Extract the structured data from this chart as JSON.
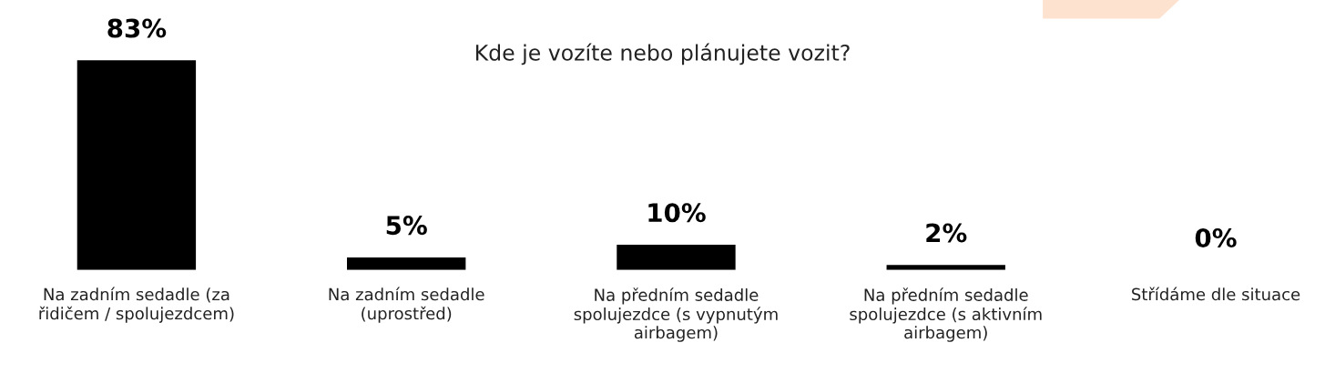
{
  "chart_data": {
    "type": "bar",
    "title": "Kde je vozíte nebo plánujete vozit?",
    "categories": [
      "Na zadním sedadle (za řidičem / spolujezdcem)",
      "Na zadním sedadle (uprostřed)",
      "Na předním sedadle spolujezdce (s vypnutým airbagem)",
      "Na předním sedadle spolujezdce (s aktivním airbagem)",
      "Střídáme dle situace"
    ],
    "values": [
      83,
      5,
      10,
      2,
      0
    ],
    "value_labels": [
      "83%",
      "5%",
      "10%",
      "2%",
      "0%"
    ],
    "color": "#000000",
    "grid": false,
    "legend": false
  }
}
